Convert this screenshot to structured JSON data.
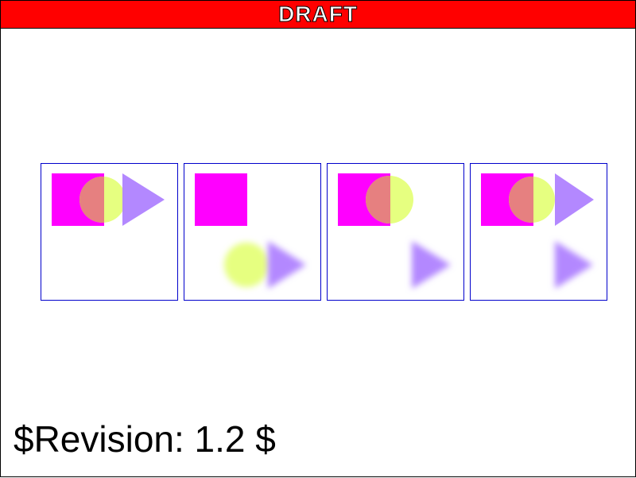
{
  "banner": {
    "text": "DRAFT",
    "background": "#ff0000"
  },
  "footer": {
    "revision": "$Revision: 1.2 $"
  },
  "colors": {
    "panel_border": "#0000cc",
    "square": "#ff00ff",
    "circle": "#e6ff80",
    "triangle": "#b388ff",
    "overlap": "#e68080"
  },
  "panels": [
    {
      "name": "panel-1",
      "shapes": [
        "square",
        "circle",
        "triangle"
      ],
      "blurred": []
    },
    {
      "name": "panel-2",
      "shapes": [
        "square",
        "circle",
        "triangle"
      ],
      "blurred": [
        "circle",
        "triangle"
      ]
    },
    {
      "name": "panel-3",
      "shapes": [
        "square",
        "circle",
        "triangle"
      ],
      "blurred": [
        "triangle"
      ]
    },
    {
      "name": "panel-4",
      "shapes": [
        "square",
        "circle",
        "triangle",
        "triangle"
      ],
      "blurred": [
        "triangle"
      ]
    }
  ]
}
